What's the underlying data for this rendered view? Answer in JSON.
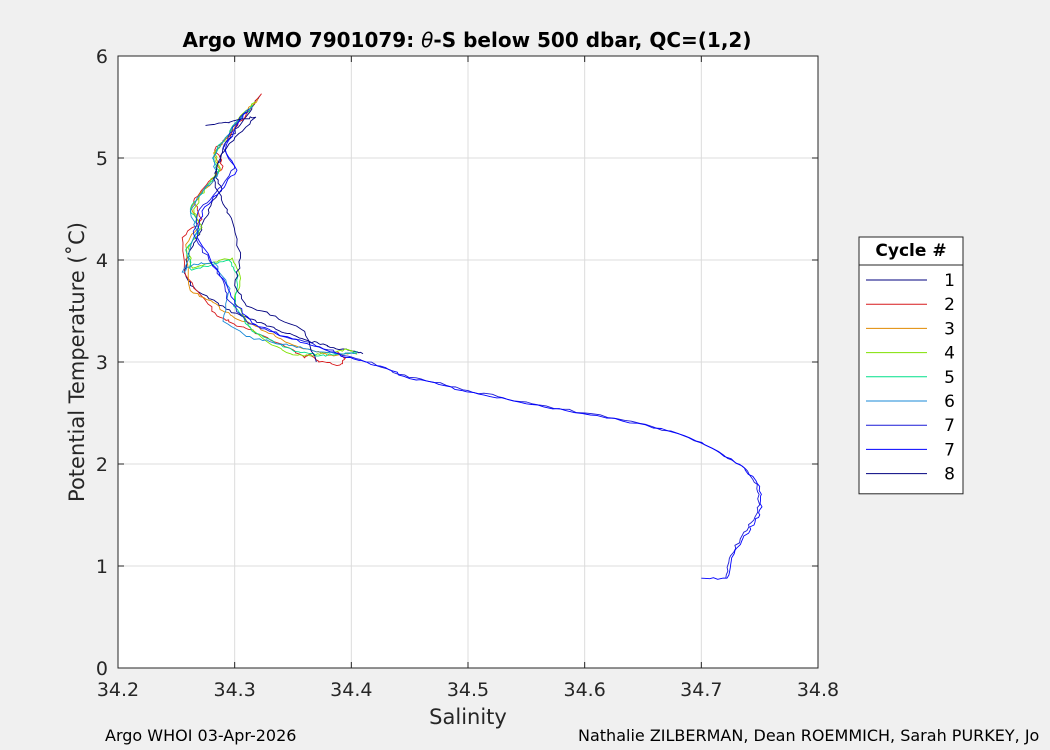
{
  "footer": {
    "left": "Argo WHOI 03-Apr-2026",
    "right": "Nathalie ZILBERMAN, Dean ROEMMICH, Sarah PURKEY, Jo"
  },
  "chart_data": {
    "type": "line",
    "title_prefix": "Argo WMO 7901079: ",
    "title_symbol": "θ",
    "title_suffix": "-S below 500 dbar,  QC=(1,2)",
    "xlabel": "Salinity",
    "ylabel": "Potential Temperature (˚C)",
    "xlim": [
      34.2,
      34.8
    ],
    "ylim": [
      0,
      6
    ],
    "xticks": [
      34.2,
      34.3,
      34.4,
      34.5,
      34.6,
      34.7,
      34.8
    ],
    "yticks": [
      0,
      1,
      2,
      3,
      4,
      5,
      6
    ],
    "xtick_labels": [
      "34.2",
      "34.3",
      "34.4",
      "34.5",
      "34.6",
      "34.7",
      "34.8"
    ],
    "ytick_labels": [
      "0",
      "1",
      "2",
      "3",
      "4",
      "5",
      "6"
    ],
    "grid": true,
    "legend": {
      "title": "Cycle #",
      "placement": "outside-right"
    },
    "series": [
      {
        "name": "1",
        "color": "#00007f",
        "x": [
          34.3215,
          34.313,
          34.303,
          34.292,
          34.288,
          34.283,
          34.289,
          34.28,
          34.274,
          34.27,
          34.262,
          34.257,
          34.262,
          34.278,
          34.29,
          34.3,
          34.315,
          34.33,
          34.345,
          34.36,
          34.372,
          34.385,
          34.4,
          34.41
        ],
        "y": [
          5.61,
          5.45,
          5.3,
          5.15,
          5.0,
          4.85,
          4.7,
          4.55,
          4.4,
          4.25,
          4.1,
          3.9,
          3.75,
          3.62,
          3.55,
          3.48,
          3.42,
          3.35,
          3.28,
          3.22,
          3.18,
          3.14,
          3.11,
          3.08
        ]
      },
      {
        "name": "2",
        "color": "#d7191c",
        "x": [
          34.323,
          34.31,
          34.298,
          34.283,
          34.29,
          34.276,
          34.265,
          34.272,
          34.255,
          34.258,
          34.274,
          34.285,
          34.298,
          34.312,
          34.33,
          34.35,
          34.36,
          34.365,
          34.372,
          34.39,
          34.395,
          34.388
        ],
        "y": [
          5.63,
          5.43,
          5.26,
          5.08,
          4.92,
          4.74,
          4.58,
          4.4,
          4.22,
          3.85,
          3.62,
          3.45,
          3.38,
          3.32,
          3.22,
          3.12,
          3.04,
          3.08,
          3.0,
          2.97,
          3.04,
          3.1
        ]
      },
      {
        "name": "3",
        "color": "#e08a00",
        "x": [
          34.32,
          34.305,
          34.295,
          34.282,
          34.288,
          34.275,
          34.263,
          34.27,
          34.258,
          34.262,
          34.28,
          34.29,
          34.302,
          34.318,
          34.335,
          34.352,
          34.37,
          34.385,
          34.4
        ],
        "y": [
          5.58,
          5.4,
          5.22,
          5.05,
          4.88,
          4.7,
          4.52,
          4.35,
          4.15,
          3.7,
          3.6,
          3.5,
          3.42,
          3.35,
          3.25,
          3.16,
          3.1,
          3.06,
          3.09
        ]
      },
      {
        "name": "4",
        "color": "#7fe000",
        "x": [
          34.318,
          34.303,
          34.292,
          34.283,
          34.287,
          34.274,
          34.265,
          34.272,
          34.26,
          34.264,
          34.282,
          34.298,
          34.305,
          34.3,
          34.312,
          34.33,
          34.348,
          34.365,
          34.382,
          34.398,
          34.405
        ],
        "y": [
          5.55,
          5.38,
          5.2,
          5.04,
          4.88,
          4.7,
          4.5,
          4.32,
          4.12,
          3.92,
          3.98,
          4.02,
          3.82,
          3.6,
          3.35,
          3.18,
          3.08,
          3.06,
          3.1,
          3.12,
          3.08
        ]
      },
      {
        "name": "5",
        "color": "#00e08a",
        "x": [
          34.316,
          34.302,
          34.291,
          34.282,
          34.286,
          34.273,
          34.262,
          34.27,
          34.258,
          34.263,
          34.28,
          34.295,
          34.303,
          34.299,
          34.315,
          34.335,
          34.355,
          34.372,
          34.39,
          34.405
        ],
        "y": [
          5.52,
          5.36,
          5.18,
          5.02,
          4.85,
          4.68,
          4.5,
          4.3,
          4.1,
          3.9,
          3.95,
          4.0,
          3.85,
          3.55,
          3.3,
          3.18,
          3.1,
          3.06,
          3.08,
          3.1
        ]
      },
      {
        "name": "6",
        "color": "#1a8ad7",
        "x": [
          34.315,
          34.3,
          34.29,
          34.281,
          34.285,
          34.272,
          34.262,
          34.268,
          34.255,
          34.265,
          34.282,
          34.296,
          34.29,
          34.31,
          34.33,
          34.35,
          34.37,
          34.39,
          34.405
        ],
        "y": [
          5.5,
          5.34,
          5.16,
          5.0,
          4.82,
          4.66,
          4.48,
          4.28,
          3.88,
          3.96,
          3.98,
          3.72,
          3.4,
          3.25,
          3.2,
          3.16,
          3.1,
          3.08,
          3.09
        ]
      },
      {
        "name": "7",
        "color": "#1a1ad7",
        "x": [
          34.312,
          34.298,
          34.29,
          34.3,
          34.286,
          34.27,
          34.265,
          34.278,
          34.29,
          34.295,
          34.31,
          34.33,
          34.36,
          34.38,
          34.4,
          34.42,
          34.44,
          34.47,
          34.5,
          34.53,
          34.56,
          34.6,
          34.64,
          34.68,
          34.71,
          34.735,
          34.748,
          34.75,
          34.745,
          34.735,
          34.725,
          34.721
        ],
        "y": [
          5.48,
          5.3,
          5.1,
          4.9,
          4.7,
          4.5,
          4.25,
          4.0,
          3.8,
          3.6,
          3.4,
          3.3,
          3.2,
          3.12,
          3.05,
          2.98,
          2.88,
          2.8,
          2.72,
          2.65,
          2.58,
          2.5,
          2.42,
          2.3,
          2.15,
          1.98,
          1.8,
          1.6,
          1.45,
          1.3,
          1.1,
          0.88
        ]
      },
      {
        "name": "7",
        "color": "#0000ff",
        "x": [
          34.31,
          34.3,
          34.292,
          34.302,
          34.288,
          34.272,
          34.268,
          34.28,
          34.292,
          34.3,
          34.315,
          34.335,
          34.362,
          34.382,
          34.402,
          34.425,
          34.445,
          34.475,
          34.505,
          34.535,
          34.565,
          34.605,
          34.645,
          34.685,
          34.713,
          34.737,
          34.75,
          34.752,
          34.746,
          34.736,
          34.726,
          34.722,
          34.7
        ],
        "y": [
          5.45,
          5.28,
          5.08,
          4.88,
          4.68,
          4.48,
          4.22,
          3.98,
          3.78,
          3.58,
          3.38,
          3.28,
          3.18,
          3.1,
          3.03,
          2.96,
          2.86,
          2.78,
          2.7,
          2.63,
          2.56,
          2.48,
          2.4,
          2.28,
          2.13,
          1.96,
          1.78,
          1.58,
          1.43,
          1.28,
          1.08,
          0.88,
          0.88
        ]
      },
      {
        "name": "8",
        "color": "#00007f",
        "x": [
          34.275,
          34.292,
          34.305,
          34.318,
          34.3,
          34.288,
          34.282,
          34.29,
          34.298,
          34.305,
          34.3,
          34.31,
          34.335,
          34.36,
          34.37
        ],
        "y": [
          5.32,
          5.35,
          5.38,
          5.4,
          5.2,
          5.0,
          4.8,
          4.55,
          4.38,
          4.02,
          3.75,
          3.55,
          3.45,
          3.3,
          3.0
        ]
      }
    ]
  }
}
